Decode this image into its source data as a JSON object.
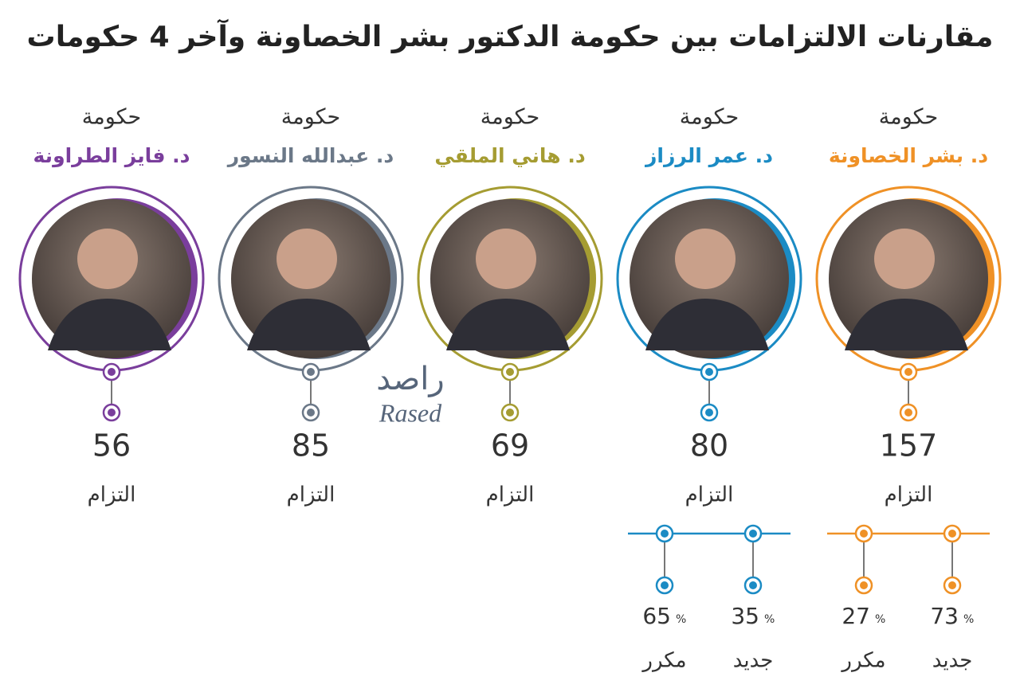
{
  "header": {
    "title": "مقارنات الالتزامات بين حكومة الدكتور بشر الخصاونة وآخر 4 حكومات"
  },
  "governments": [
    {
      "label": "حكومة",
      "name": "د. بشر الخصاونة",
      "color": "#ef9126",
      "count": "157",
      "unit": "التزام",
      "breakdown": [
        {
          "value": "73",
          "sign": "%",
          "label": "جديد"
        },
        {
          "value": "27",
          "sign": "%",
          "label": "مكرر"
        }
      ]
    },
    {
      "label": "حكومة",
      "name": "د. عمر الرزاز",
      "color": "#1b8bc4",
      "count": "80",
      "unit": "التزام",
      "breakdown": [
        {
          "value": "35",
          "sign": "%",
          "label": "جديد"
        },
        {
          "value": "65",
          "sign": "%",
          "label": "مكرر"
        }
      ]
    },
    {
      "label": "حكومة",
      "name": "د. هاني الملقي",
      "color": "#a59c32",
      "count": "69",
      "unit": "التزام"
    },
    {
      "label": "حكومة",
      "name": "د. عبدالله النسور",
      "color": "#6b7888",
      "count": "85",
      "unit": "التزام"
    },
    {
      "label": "حكومة",
      "name": "د. فايز الطراونة",
      "color": "#7a3e9c",
      "count": "56",
      "unit": "التزام"
    }
  ],
  "watermark": {
    "arabic": "راصد",
    "latin": "Rased"
  }
}
